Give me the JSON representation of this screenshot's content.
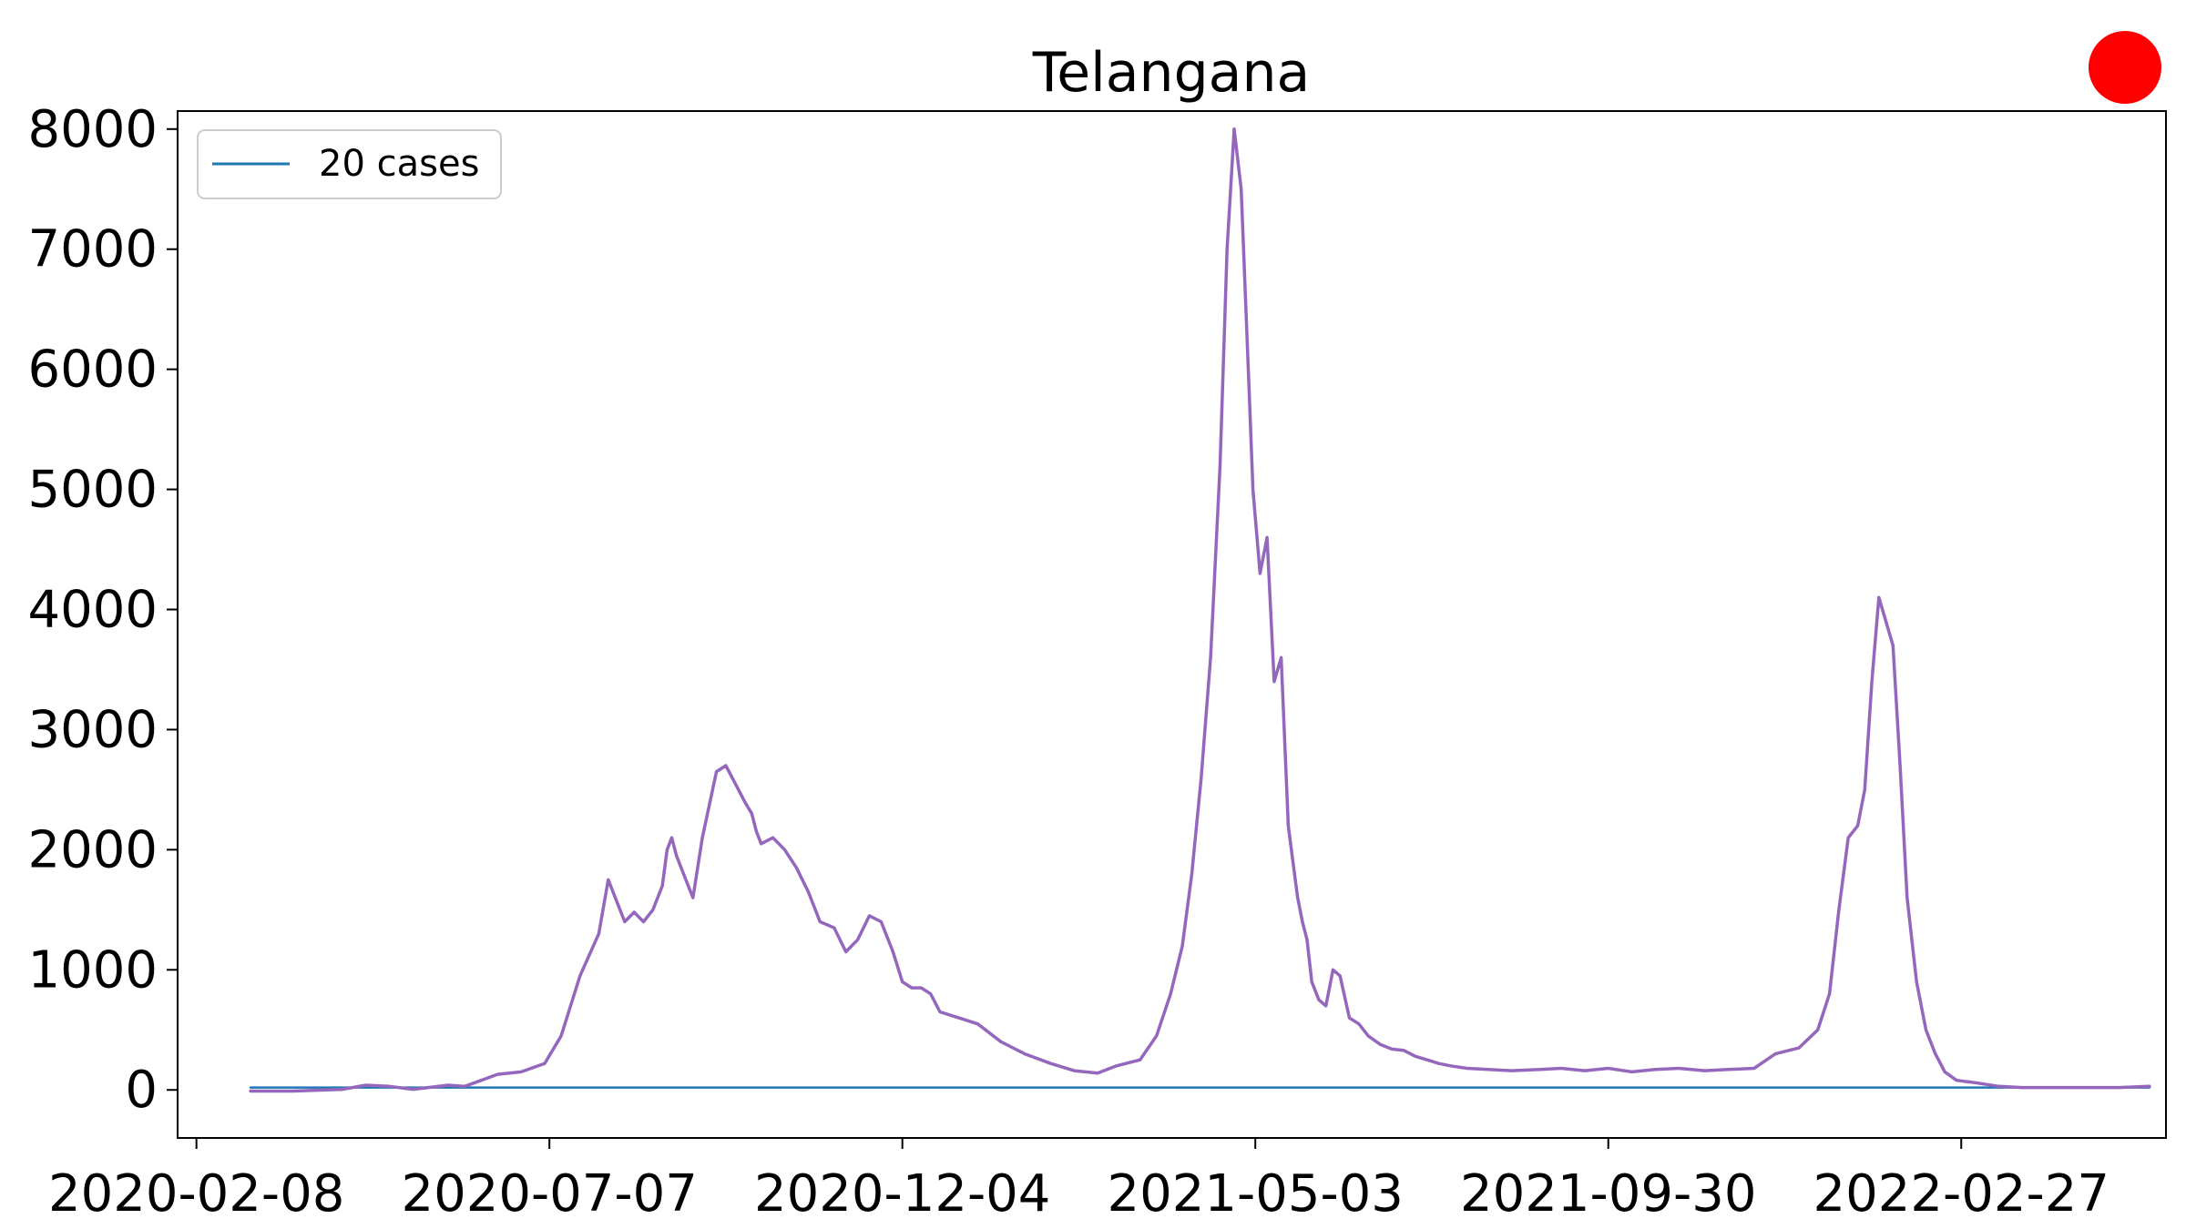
{
  "chart_data": {
    "type": "line",
    "title": "Telangana",
    "xlabel": "",
    "ylabel": "",
    "ylim": [
      -400,
      8150
    ],
    "xlim": [
      "2020-01-31",
      "2022-05-25"
    ],
    "yticks": [
      0,
      1000,
      2000,
      3000,
      4000,
      5000,
      6000,
      7000,
      8000
    ],
    "xticks": [
      "2020-02-08",
      "2020-07-07",
      "2020-12-04",
      "2021-05-03",
      "2021-09-30",
      "2022-02-27"
    ],
    "grid": false,
    "legend": {
      "placement": "top-left",
      "entries": [
        {
          "label": "20 cases",
          "color": "#1f77b4"
        }
      ]
    },
    "marker": {
      "color": "#ff0000",
      "shape": "circle",
      "location": "top-right"
    },
    "series": [
      {
        "name": "20 cases",
        "color": "#1f77b4",
        "x": [
          "2020-03-02",
          "2022-05-18"
        ],
        "y": [
          20,
          20
        ]
      },
      {
        "name": "",
        "color": "#9467bd",
        "x": [
          "2020-03-02",
          "2020-03-20",
          "2020-04-10",
          "2020-04-20",
          "2020-04-30",
          "2020-05-10",
          "2020-05-25",
          "2020-06-01",
          "2020-06-15",
          "2020-06-25",
          "2020-07-05",
          "2020-07-12",
          "2020-07-20",
          "2020-07-28",
          "2020-08-01",
          "2020-08-05",
          "2020-08-08",
          "2020-08-12",
          "2020-08-16",
          "2020-08-20",
          "2020-08-24",
          "2020-08-26",
          "2020-08-28",
          "2020-08-30",
          "2020-09-02",
          "2020-09-06",
          "2020-09-10",
          "2020-09-16",
          "2020-09-20",
          "2020-09-24",
          "2020-09-28",
          "2020-10-01",
          "2020-10-03",
          "2020-10-05",
          "2020-10-10",
          "2020-10-15",
          "2020-10-20",
          "2020-10-25",
          "2020-10-30",
          "2020-11-05",
          "2020-11-10",
          "2020-11-15",
          "2020-11-20",
          "2020-11-25",
          "2020-11-30",
          "2020-12-04",
          "2020-12-08",
          "2020-12-12",
          "2020-12-16",
          "2020-12-20",
          "2020-12-28",
          "2021-01-05",
          "2021-01-15",
          "2021-01-25",
          "2021-02-05",
          "2021-02-15",
          "2021-02-25",
          "2021-03-05",
          "2021-03-15",
          "2021-03-22",
          "2021-03-28",
          "2021-04-02",
          "2021-04-06",
          "2021-04-10",
          "2021-04-14",
          "2021-04-18",
          "2021-04-21",
          "2021-04-24",
          "2021-04-27",
          "2021-04-30",
          "2021-05-02",
          "2021-05-05",
          "2021-05-08",
          "2021-05-11",
          "2021-05-14",
          "2021-05-17",
          "2021-05-19",
          "2021-05-21",
          "2021-05-23",
          "2021-05-25",
          "2021-05-27",
          "2021-05-30",
          "2021-06-02",
          "2021-06-05",
          "2021-06-08",
          "2021-06-12",
          "2021-06-16",
          "2021-06-20",
          "2021-06-25",
          "2021-06-30",
          "2021-07-05",
          "2021-07-10",
          "2021-07-15",
          "2021-07-20",
          "2021-07-25",
          "2021-08-01",
          "2021-08-10",
          "2021-08-20",
          "2021-09-01",
          "2021-09-10",
          "2021-09-20",
          "2021-09-30",
          "2021-10-10",
          "2021-10-20",
          "2021-10-30",
          "2021-11-10",
          "2021-11-20",
          "2021-12-01",
          "2021-12-10",
          "2021-12-20",
          "2021-12-28",
          "2022-01-02",
          "2022-01-06",
          "2022-01-10",
          "2022-01-14",
          "2022-01-17",
          "2022-01-20",
          "2022-01-23",
          "2022-01-26",
          "2022-01-29",
          "2022-02-01",
          "2022-02-04",
          "2022-02-08",
          "2022-02-12",
          "2022-02-16",
          "2022-02-20",
          "2022-02-25",
          "2022-03-05",
          "2022-03-15",
          "2022-03-25",
          "2022-04-05",
          "2022-04-20",
          "2022-05-05",
          "2022-05-18"
        ],
        "y": [
          -10,
          -10,
          5,
          40,
          30,
          5,
          40,
          30,
          130,
          150,
          220,
          450,
          950,
          1300,
          1750,
          1550,
          1400,
          1480,
          1400,
          1500,
          1700,
          2000,
          2100,
          1950,
          1800,
          1600,
          2100,
          2650,
          2700,
          2550,
          2400,
          2300,
          2150,
          2050,
          2100,
          2000,
          1850,
          1650,
          1400,
          1350,
          1150,
          1250,
          1450,
          1400,
          1150,
          900,
          850,
          850,
          800,
          650,
          600,
          550,
          400,
          300,
          220,
          160,
          140,
          200,
          250,
          450,
          800,
          1200,
          1800,
          2600,
          3600,
          5200,
          7000,
          8000,
          7500,
          6000,
          5000,
          4300,
          4600,
          3400,
          3600,
          2200,
          1900,
          1600,
          1400,
          1250,
          900,
          750,
          700,
          1000,
          950,
          600,
          550,
          450,
          380,
          340,
          330,
          280,
          250,
          220,
          200,
          180,
          170,
          160,
          170,
          180,
          160,
          180,
          150,
          170,
          180,
          160,
          170,
          180,
          300,
          350,
          500,
          800,
          1500,
          2100,
          2200,
          2500,
          3400,
          4100,
          3900,
          3700,
          2700,
          1600,
          900,
          500,
          300,
          150,
          80,
          60,
          30,
          20,
          20,
          20,
          20,
          30
        ]
      }
    ]
  }
}
